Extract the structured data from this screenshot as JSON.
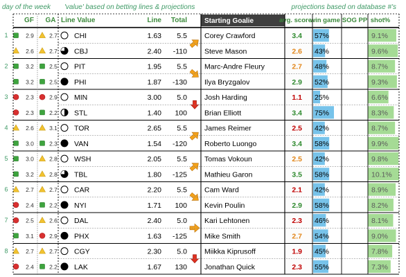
{
  "top_notes": {
    "day_of_week": "day of the week",
    "value_note": "'value' based on betting lines & projections",
    "projections_note": "projections based on database #'s"
  },
  "headers": {
    "gf": "GF",
    "ga": "GA",
    "line_value": "Line Value",
    "line": "Line",
    "total": "Total",
    "starting_goalie": "Starting Goalie",
    "avg_score": "avg. score",
    "win_game": "win game",
    "sog_pp": "SOG PP",
    "shot_pct": "shot%"
  },
  "colors": {
    "header_bg": "#3f3f3f",
    "header_text": "#ffffff",
    "gf_text": "#3c8a3c",
    "note_text": "#3f9a66",
    "score_red": "#c00000",
    "score_orange": "#e2861a",
    "score_green": "#2f8a2f",
    "win_bar": "#5fb8e6",
    "shot_bar": "#8fd27a",
    "arrow_orange": "#f4a21a",
    "arrow_red": "#e03020",
    "icon_green": "#3ea43e",
    "icon_yellow": "#f2c230",
    "icon_red": "#d83030"
  },
  "games": [
    {
      "day": "1",
      "teams": [
        {
          "gf_icon": "green-square",
          "gf": "2.9",
          "ga_icon": "yellow-triangle",
          "ga": "2.7",
          "value_icon": "empty-circle",
          "team": "CHI",
          "line": "1.63",
          "total": "5.5",
          "goalie": "Corey Crawford",
          "avg_score": "3.4",
          "score_color": "green",
          "win": "57%",
          "win_frac": 0.57,
          "shot": "9.1%",
          "shot_frac": 0.91
        },
        {
          "gf_icon": "yellow-triangle",
          "gf": "2.6",
          "ga_icon": "yellow-triangle",
          "ga": "2.7",
          "value_icon": "three-quarter-circle",
          "team": "CBJ",
          "line": "2.40",
          "total": "-110",
          "goalie": "Steve Mason",
          "avg_score": "2.6",
          "score_color": "orange",
          "win": "43%",
          "win_frac": 0.43,
          "shot": "9.6%",
          "shot_frac": 0.96
        }
      ],
      "arrow": "up-right",
      "arrow_color": "orange"
    },
    {
      "day": "2",
      "teams": [
        {
          "gf_icon": "green-square",
          "gf": "3.2",
          "ga_icon": "green-square",
          "ga": "2.5",
          "value_icon": "empty-circle",
          "team": "PIT",
          "line": "1.95",
          "total": "5.5",
          "goalie": "Marc-Andre Fleury",
          "avg_score": "2.7",
          "score_color": "orange",
          "win": "48%",
          "win_frac": 0.48,
          "shot": "8.7%",
          "shot_frac": 0.87
        },
        {
          "gf_icon": "green-square",
          "gf": "3.2",
          "ga_icon": "green-square",
          "ga": "2.5",
          "value_icon": "filled-circle",
          "team": "PHI",
          "line": "1.87",
          "total": "-130",
          "goalie": "Ilya Bryzgalov",
          "avg_score": "2.9",
          "score_color": "green",
          "win": "52%",
          "win_frac": 0.52,
          "shot": "9.3%",
          "shot_frac": 0.93
        }
      ],
      "arrow": "down-right",
      "arrow_color": "orange"
    },
    {
      "day": "3",
      "teams": [
        {
          "gf_icon": "red-circle",
          "gf": "2.3",
          "ga_icon": "red-circle",
          "ga": "2.9",
          "value_icon": "empty-circle",
          "team": "MIN",
          "line": "3.00",
          "total": "5.0",
          "goalie": "Josh Harding",
          "avg_score": "1.1",
          "score_color": "red",
          "win": "25%",
          "win_frac": 0.25,
          "shot": "6.6%",
          "shot_frac": 0.66
        },
        {
          "gf_icon": "red-circle",
          "gf": "2.3",
          "ga_icon": "green-square",
          "ga": "2.2",
          "value_icon": "half-circle",
          "team": "STL",
          "line": "1.40",
          "total": "100",
          "goalie": "Brian Elliott",
          "avg_score": "3.4",
          "score_color": "green",
          "win": "75%",
          "win_frac": 0.75,
          "shot": "8.3%",
          "shot_frac": 0.83
        }
      ],
      "arrow": "down",
      "arrow_color": "red"
    },
    {
      "day": "4",
      "teams": [
        {
          "gf_icon": "yellow-triangle",
          "gf": "2.6",
          "ga_icon": "yellow-triangle",
          "ga": "3.1",
          "value_icon": "empty-circle",
          "team": "TOR",
          "line": "2.65",
          "total": "5.5",
          "goalie": "James Reimer",
          "avg_score": "2.5",
          "score_color": "red",
          "win": "42%",
          "win_frac": 0.42,
          "shot": "8.7%",
          "shot_frac": 0.87
        },
        {
          "gf_icon": "green-square",
          "gf": "3.0",
          "ga_icon": "green-square",
          "ga": "2.3",
          "value_icon": "filled-circle",
          "team": "VAN",
          "line": "1.54",
          "total": "-120",
          "goalie": "Roberto Luongo",
          "avg_score": "3.4",
          "score_color": "green",
          "win": "58%",
          "win_frac": 0.58,
          "shot": "9.9%",
          "shot_frac": 0.99
        }
      ],
      "arrow": "up-right",
      "arrow_color": "orange"
    },
    {
      "day": "5",
      "teams": [
        {
          "gf_icon": "green-square",
          "gf": "3.0",
          "ga_icon": "yellow-triangle",
          "ga": "2.8",
          "value_icon": "empty-circle",
          "team": "WSH",
          "line": "2.05",
          "total": "5.5",
          "goalie": "Tomas Vokoun",
          "avg_score": "2.5",
          "score_color": "orange",
          "win": "42%",
          "win_frac": 0.42,
          "shot": "9.8%",
          "shot_frac": 0.98
        },
        {
          "gf_icon": "green-square",
          "gf": "3.2",
          "ga_icon": "yellow-triangle",
          "ga": "2.8",
          "value_icon": "three-quarter-circle",
          "team": "TBL",
          "line": "1.80",
          "total": "-125",
          "goalie": "Mathieu Garon",
          "avg_score": "3.5",
          "score_color": "green",
          "win": "58%",
          "win_frac": 0.58,
          "shot": "10.1%",
          "shot_frac": 1.0
        }
      ],
      "arrow": "up-right",
      "arrow_color": "orange"
    },
    {
      "day": "6",
      "teams": [
        {
          "gf_icon": "yellow-triangle",
          "gf": "2.7",
          "ga_icon": "yellow-triangle",
          "ga": "2.7",
          "value_icon": "empty-circle",
          "team": "CAR",
          "line": "2.20",
          "total": "5.5",
          "goalie": "Cam Ward",
          "avg_score": "2.1",
          "score_color": "red",
          "win": "42%",
          "win_frac": 0.42,
          "shot": "8.9%",
          "shot_frac": 0.89
        },
        {
          "gf_icon": "red-circle",
          "gf": "2.4",
          "ga_icon": "green-square",
          "ga": "2.2",
          "value_icon": "filled-circle",
          "team": "NYI",
          "line": "1.71",
          "total": "100",
          "goalie": "Kevin Poulin",
          "avg_score": "2.9",
          "score_color": "green",
          "win": "58%",
          "win_frac": 0.58,
          "shot": "8.2%",
          "shot_frac": 0.82
        }
      ],
      "arrow": "down-right",
      "arrow_color": "orange"
    },
    {
      "day": "7",
      "teams": [
        {
          "gf_icon": "red-circle",
          "gf": "2.5",
          "ga_icon": "yellow-triangle",
          "ga": "2.6",
          "value_icon": "empty-circle",
          "team": "DAL",
          "line": "2.40",
          "total": "5.0",
          "goalie": "Kari Lehtonen",
          "avg_score": "2.3",
          "score_color": "red",
          "win": "46%",
          "win_frac": 0.46,
          "shot": "8.1%",
          "shot_frac": 0.81
        },
        {
          "gf_icon": "green-square",
          "gf": "3.1",
          "ga_icon": "red-circle",
          "ga": "2.9",
          "value_icon": "filled-circle",
          "team": "PHX",
          "line": "1.63",
          "total": "-125",
          "goalie": "Mike Smith",
          "avg_score": "2.7",
          "score_color": "orange",
          "win": "54%",
          "win_frac": 0.54,
          "shot": "9.0%",
          "shot_frac": 0.9
        }
      ],
      "arrow": "right",
      "arrow_color": "orange"
    },
    {
      "day": "8",
      "teams": [
        {
          "gf_icon": "yellow-triangle",
          "gf": "2.7",
          "ga_icon": "yellow-triangle",
          "ga": "2.7",
          "value_icon": "empty-circle",
          "team": "CGY",
          "line": "2.30",
          "total": "5.0",
          "goalie": "Miikka Kiprusoff",
          "avg_score": "1.9",
          "score_color": "red",
          "win": "45%",
          "win_frac": 0.45,
          "shot": "7.8%",
          "shot_frac": 0.78
        },
        {
          "gf_icon": "red-circle",
          "gf": "2.4",
          "ga_icon": "green-square",
          "ga": "2.2",
          "value_icon": "filled-circle",
          "team": "LAK",
          "line": "1.67",
          "total": "130",
          "goalie": "Jonathan Quick",
          "avg_score": "2.3",
          "score_color": "red",
          "win": "55%",
          "win_frac": 0.55,
          "shot": "7.3%",
          "shot_frac": 0.73
        }
      ],
      "arrow": "down",
      "arrow_color": "red"
    }
  ]
}
